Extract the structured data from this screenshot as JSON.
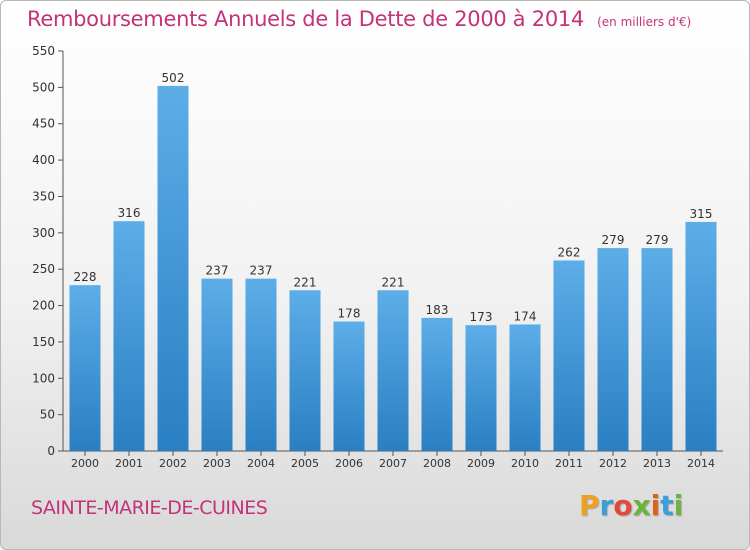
{
  "chart_data": {
    "type": "bar",
    "title": "Remboursements Annuels de la Dette de 2000 à 2014",
    "subtitle": "(en milliers d'€)",
    "categories": [
      "2000",
      "2001",
      "2002",
      "2003",
      "2004",
      "2005",
      "2006",
      "2007",
      "2008",
      "2009",
      "2010",
      "2011",
      "2012",
      "2013",
      "2014"
    ],
    "values": [
      228,
      316,
      502,
      237,
      237,
      221,
      178,
      221,
      183,
      173,
      174,
      262,
      279,
      279,
      315
    ],
    "ylim": [
      0,
      550
    ],
    "yticks": [
      0,
      50,
      100,
      150,
      200,
      250,
      300,
      350,
      400,
      450,
      500,
      550
    ],
    "grid": false,
    "data_labels": true,
    "colors": {
      "bar_light": "#5dade8",
      "bar_dark": "#2a7fc2",
      "title": "#c4337a"
    }
  },
  "footer": {
    "municipality": "SAINTE-MARIE-DE-CUINES",
    "logo_text": "Proxiti"
  },
  "logo_colors": [
    "#f0a020",
    "#3a9fd8",
    "#e04a3a",
    "#6cb43c",
    "#e06020",
    "#3a9fd8",
    "#6cb43c"
  ]
}
